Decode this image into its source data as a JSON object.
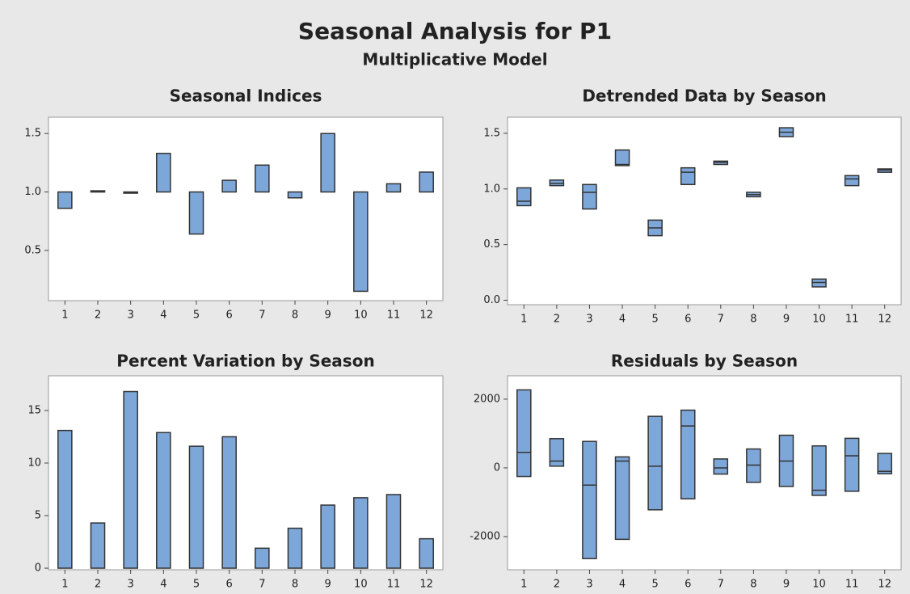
{
  "title": "Seasonal Analysis for P1",
  "subtitle": "Multiplicative Model",
  "chart_data": [
    {
      "type": "bar",
      "title": "Seasonal Indices",
      "categories": [
        "1",
        "2",
        "3",
        "4",
        "5",
        "6",
        "7",
        "8",
        "9",
        "10",
        "11",
        "12"
      ],
      "values": [
        0.86,
        1.01,
        0.99,
        1.33,
        0.64,
        1.1,
        1.23,
        0.95,
        1.5,
        0.15,
        1.07,
        1.17
      ],
      "bar_base": 1,
      "color": "#7da7d9",
      "ylim": [
        0.07,
        1.64
      ],
      "yticks": [
        0.5,
        {
          "value": 1,
          "label": "1.0"
        },
        1.5
      ]
    },
    {
      "type": "box",
      "title": "Detrended Data by Season",
      "categories": [
        "1",
        "2",
        "3",
        "4",
        "5",
        "6",
        "7",
        "8",
        "9",
        "10",
        "11",
        "12"
      ],
      "low": [
        0.85,
        1.03,
        0.82,
        1.21,
        0.58,
        1.04,
        1.22,
        0.93,
        1.47,
        0.12,
        1.03,
        1.15
      ],
      "median": [
        0.89,
        1.05,
        0.97,
        1.22,
        0.65,
        1.15,
        1.24,
        0.95,
        1.51,
        0.16,
        1.09,
        1.17
      ],
      "high": [
        1.01,
        1.08,
        1.04,
        1.35,
        0.72,
        1.19,
        1.25,
        0.97,
        1.55,
        0.19,
        1.12,
        1.18
      ],
      "color": "#7da7d9",
      "ylim": [
        -0.04,
        1.645
      ],
      "yticks": [
        {
          "value": 0,
          "label": "0.0"
        },
        0.5,
        {
          "value": 1,
          "label": "1.0"
        },
        1.5
      ]
    },
    {
      "type": "bar",
      "title": "Percent Variation by Season",
      "categories": [
        "1",
        "2",
        "3",
        "4",
        "5",
        "6",
        "7",
        "8",
        "9",
        "10",
        "11",
        "12"
      ],
      "values": [
        13.1,
        4.3,
        16.8,
        12.9,
        11.6,
        12.5,
        1.9,
        3.8,
        6.0,
        6.7,
        7.0,
        2.8
      ],
      "bar_base": 0,
      "color": "#7da7d9",
      "ylim": [
        -0.15,
        18.3
      ],
      "yticks": [
        0,
        5,
        10,
        15
      ]
    },
    {
      "type": "box",
      "title": "Residuals by Season",
      "categories": [
        "1",
        "2",
        "3",
        "4",
        "5",
        "6",
        "7",
        "8",
        "9",
        "10",
        "11",
        "12"
      ],
      "low": [
        -250,
        50,
        -2640,
        -2080,
        -1220,
        -900,
        -180,
        -420,
        -540,
        -800,
        -680,
        -170
      ],
      "median": [
        450,
        200,
        -500,
        200,
        50,
        1220,
        0,
        80,
        200,
        -650,
        350,
        -100
      ],
      "high": [
        2270,
        850,
        770,
        320,
        1500,
        1680,
        260,
        550,
        950,
        640,
        860,
        420
      ],
      "color": "#7da7d9",
      "ylim": [
        -2965,
        2680
      ],
      "yticks": [
        -2000,
        0,
        2000
      ]
    }
  ]
}
